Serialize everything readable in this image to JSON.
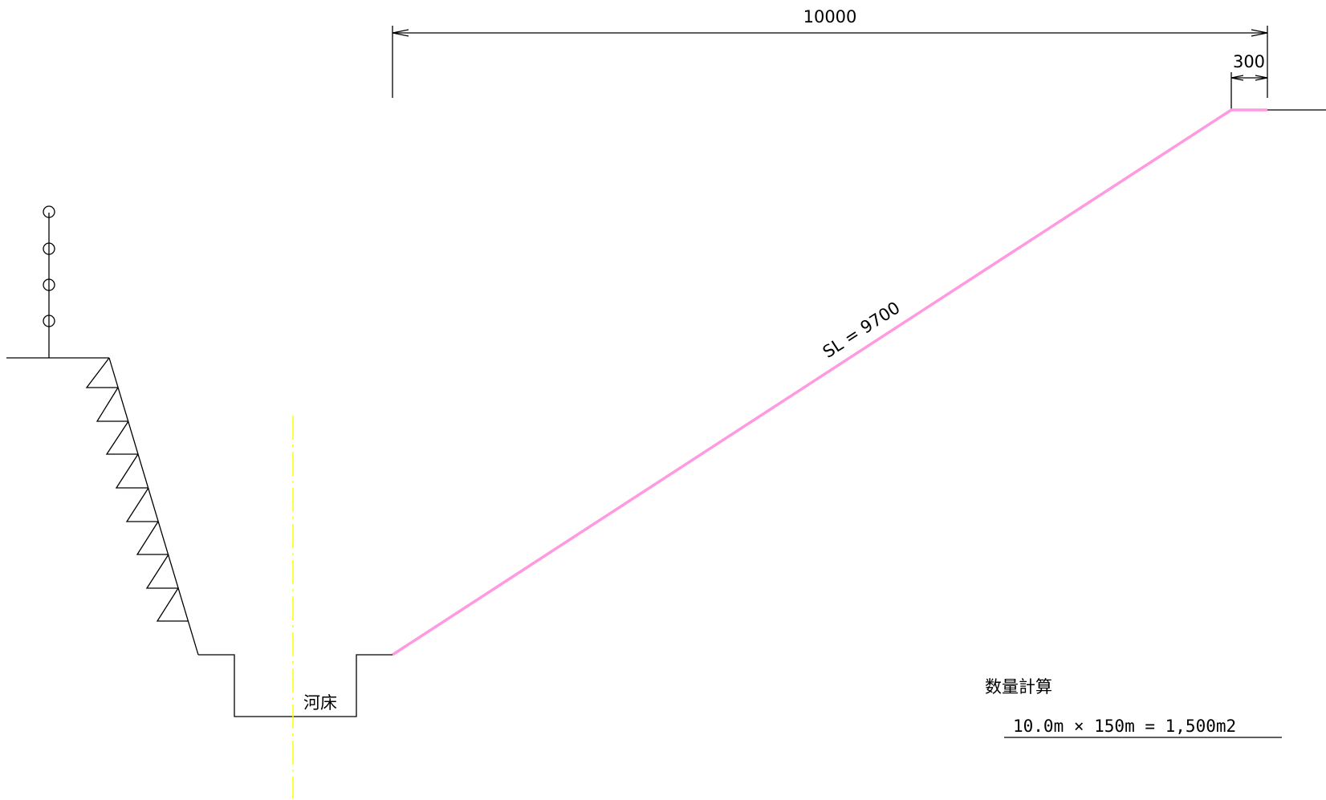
{
  "dimensions": {
    "width_label": "10000",
    "crest_label": "300"
  },
  "slope_label": "SL = 9700",
  "riverbed_label": "河床",
  "quantity": {
    "title": "数量計算",
    "formula": "10.0m × 150m = 1,500m2"
  },
  "colors": {
    "slope_line": "#ff99e0",
    "center_line": "#ffff00",
    "ink": "#000000"
  }
}
